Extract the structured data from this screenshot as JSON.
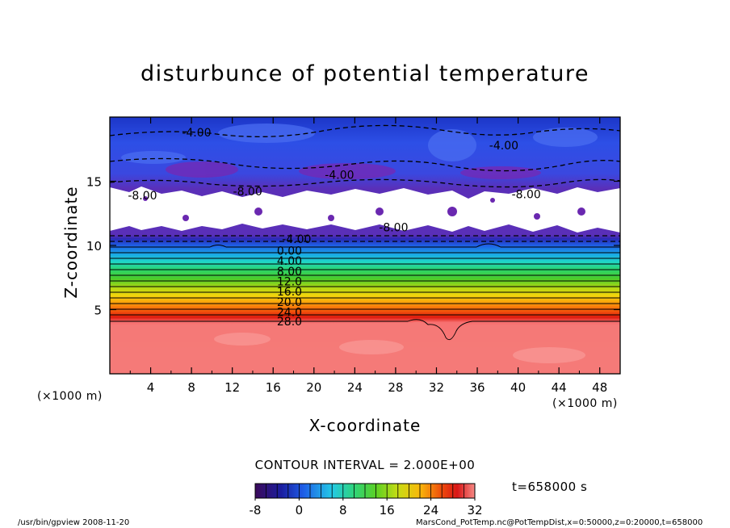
{
  "chart_data": {
    "type": "heatmap",
    "title": "disturbunce of potential temperature",
    "xlabel": "X-coordinate",
    "ylabel": "Z-coordinate",
    "x_unit_label": "(×1000 m)",
    "xlim": [
      0,
      50
    ],
    "ylim": [
      0,
      20
    ],
    "x_ticks": [
      "4",
      "8",
      "12",
      "16",
      "20",
      "24",
      "28",
      "32",
      "36",
      "40",
      "44",
      "48"
    ],
    "y_ticks": [
      "5",
      "10",
      "15"
    ],
    "contour_interval_text": "CONTOUR INTERVAL = 2.000E+00",
    "time_text": "t=658000 s",
    "colorbar": {
      "range": [
        -8,
        32
      ],
      "tick_labels": [
        "-8",
        "0",
        "8",
        "16",
        "24",
        "32"
      ]
    },
    "contour_labels": [
      {
        "text": "-4.00",
        "x": 8.5,
        "z": 18.8
      },
      {
        "text": "-4.00",
        "x": 38.6,
        "z": 17.8
      },
      {
        "text": "-4.00",
        "x": 22.5,
        "z": 15.5
      },
      {
        "text": "-8.00",
        "x": 13.5,
        "z": 14.2
      },
      {
        "text": "-8.00",
        "x": 40.8,
        "z": 14.0
      },
      {
        "text": "-8.00",
        "x": 3.2,
        "z": 13.9
      },
      {
        "text": "-8.00",
        "x": 27.8,
        "z": 11.4
      },
      {
        "text": "-4.00",
        "x": 18.3,
        "z": 10.5
      },
      {
        "text": "0.00",
        "x": 17.6,
        "z": 9.6
      },
      {
        "text": "4.00",
        "x": 17.6,
        "z": 8.8
      },
      {
        "text": "8.00",
        "x": 17.6,
        "z": 8.0
      },
      {
        "text": "12.0",
        "x": 17.6,
        "z": 7.2
      },
      {
        "text": "16.0",
        "x": 17.6,
        "z": 6.4
      },
      {
        "text": "20.0",
        "x": 17.6,
        "z": 5.6
      },
      {
        "text": "24.0",
        "x": 17.6,
        "z": 4.8
      },
      {
        "text": "28.0",
        "x": 17.6,
        "z": 4.1
      }
    ]
  },
  "footer": {
    "left": "/usr/bin/gpview   2008-11-20",
    "right": "MarsCond_PotTemp.nc@PotTempDist,x=0:50000,z=0:20000,t=658000"
  }
}
